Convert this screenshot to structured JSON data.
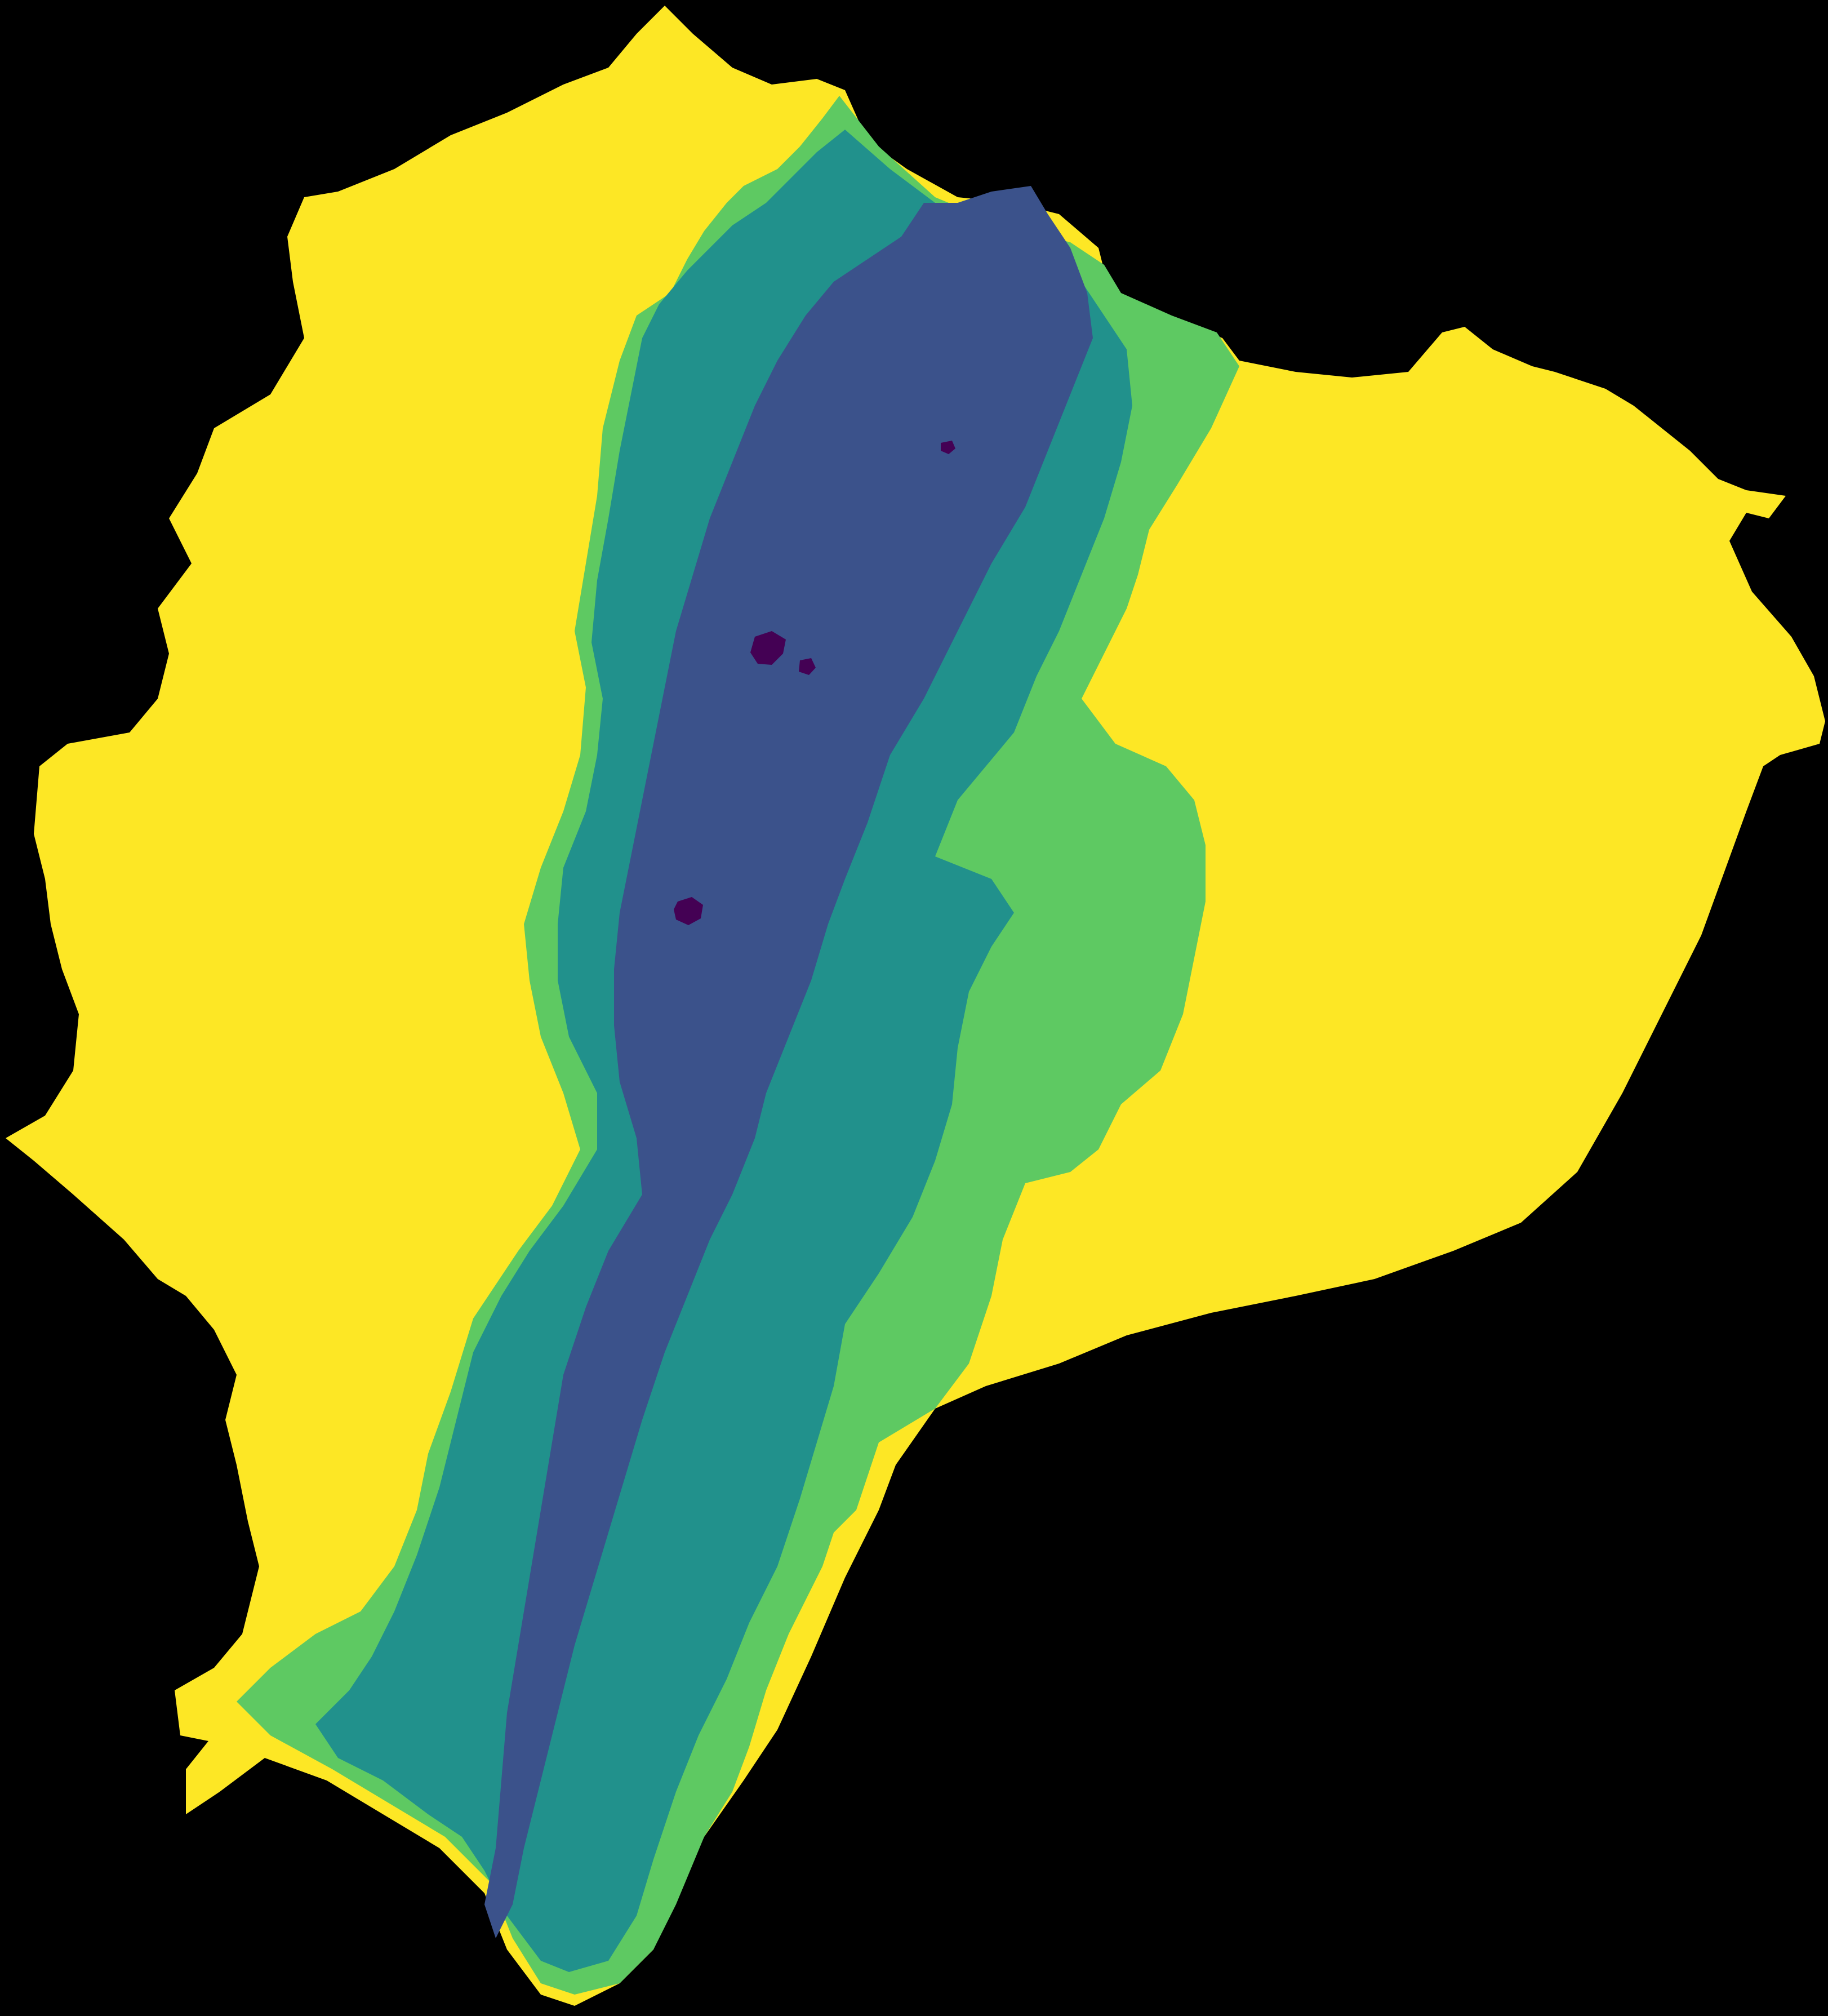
{
  "map": {
    "background_color": "#000000",
    "legend_shown": false,
    "text_labels_shown": false,
    "classes": [
      {
        "id": "class-1",
        "color": "#440154"
      },
      {
        "id": "class-2",
        "color": "#3b528b"
      },
      {
        "id": "class-3",
        "color": "#21918c"
      },
      {
        "id": "class-4",
        "color": "#5ec962"
      },
      {
        "id": "class-5",
        "color": "#fde725"
      }
    ]
  }
}
